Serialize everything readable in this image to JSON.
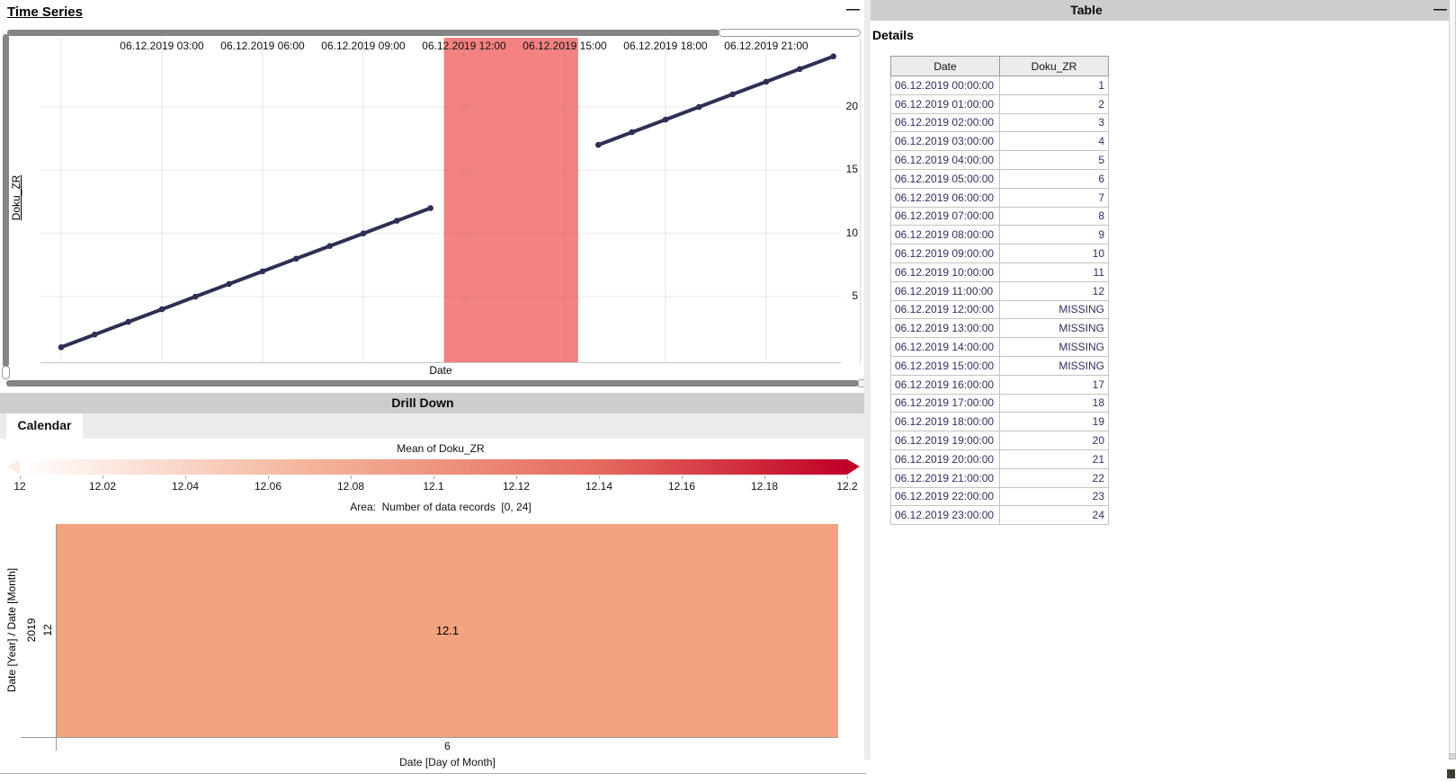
{
  "time_series": {
    "title": "Time Series",
    "x_axis_label": "Date",
    "y_axis_label": "Doku_ZR"
  },
  "chart_data": [
    {
      "type": "line",
      "title": "Time Series",
      "xlabel": "Date",
      "ylabel": "Doku_ZR",
      "x_unit": "hour of 06.12.2019",
      "hours": [
        0,
        1,
        2,
        3,
        4,
        5,
        6,
        7,
        8,
        9,
        10,
        11,
        12,
        13,
        14,
        15,
        16,
        17,
        18,
        19,
        20,
        21,
        22,
        23
      ],
      "values": [
        1,
        2,
        3,
        4,
        5,
        6,
        7,
        8,
        9,
        10,
        11,
        12,
        null,
        null,
        null,
        null,
        17,
        18,
        19,
        20,
        21,
        22,
        23,
        24
      ],
      "x_tick_labels": [
        "06.12.2019 03:00",
        "06.12.2019 06:00",
        "06.12.2019 09:00",
        "06.12.2019 12:00",
        "06.12.2019 15:00",
        "06.12.2019 18:00",
        "06.12.2019 21:00"
      ],
      "x_tick_hours": [
        3,
        6,
        9,
        12,
        15,
        18,
        21
      ],
      "y_ticks": [
        20,
        15,
        10,
        5
      ],
      "ylim": [
        0,
        25.5
      ],
      "grid": true,
      "line_color": "#2d2f55",
      "highlight_band": {
        "from_hour": 11.4,
        "to_hour": 15.4,
        "color": "#f48282"
      }
    },
    {
      "type": "heatmap",
      "panel": "Drill Down",
      "tab": "Calendar",
      "legend_title": "Mean of Doku_ZR",
      "legend_ticks": [
        "12",
        "12.02",
        "12.04",
        "12.06",
        "12.08",
        "12.1",
        "12.12",
        "12.14",
        "12.16",
        "12.18",
        "12.2"
      ],
      "legend_range": [
        12,
        12.2
      ],
      "area_label": "Area:  Number of data records  [0, 24]",
      "xlabel": "Date [Day of Month]",
      "ylabel": "Date [Year] / Date [Month]",
      "cells": [
        {
          "year": "2019",
          "month": "12",
          "day": "6",
          "value": 12.1
        }
      ],
      "cell_color": "#f2a37f"
    }
  ],
  "drill_down": {
    "title": "Drill Down",
    "tab_label": "Calendar",
    "legend_title": "Mean of Doku_ZR",
    "legend_ticks": [
      "12",
      "12.02",
      "12.04",
      "12.06",
      "12.08",
      "12.1",
      "12.12",
      "12.14",
      "12.16",
      "12.18",
      "12.2"
    ],
    "area_label": "Area:  Number of data records  [0, 24]",
    "y_axis_title": "Date [Year] / Date [Month]",
    "year_label": "2019",
    "month_label": "12",
    "cell_value": "12.1",
    "x_tick_label": "6",
    "x_axis_title": "Date [Day of Month]"
  },
  "table_panel": {
    "title": "Table",
    "subtitle": "Details",
    "columns": [
      "Date",
      "Doku_ZR"
    ],
    "rows": [
      {
        "date": "06.12.2019 00:00:00",
        "value": "1"
      },
      {
        "date": "06.12.2019 01:00:00",
        "value": "2"
      },
      {
        "date": "06.12.2019 02:00:00",
        "value": "3"
      },
      {
        "date": "06.12.2019 03:00:00",
        "value": "4"
      },
      {
        "date": "06.12.2019 04:00:00",
        "value": "5"
      },
      {
        "date": "06.12.2019 05:00:00",
        "value": "6"
      },
      {
        "date": "06.12.2019 06:00:00",
        "value": "7"
      },
      {
        "date": "06.12.2019 07:00:00",
        "value": "8"
      },
      {
        "date": "06.12.2019 08:00:00",
        "value": "9"
      },
      {
        "date": "06.12.2019 09:00:00",
        "value": "10"
      },
      {
        "date": "06.12.2019 10:00:00",
        "value": "11"
      },
      {
        "date": "06.12.2019 11:00:00",
        "value": "12"
      },
      {
        "date": "06.12.2019 12:00:00",
        "value": "MISSING"
      },
      {
        "date": "06.12.2019 13:00:00",
        "value": "MISSING"
      },
      {
        "date": "06.12.2019 14:00:00",
        "value": "MISSING"
      },
      {
        "date": "06.12.2019 15:00:00",
        "value": "MISSING"
      },
      {
        "date": "06.12.2019 16:00:00",
        "value": "17"
      },
      {
        "date": "06.12.2019 17:00:00",
        "value": "18"
      },
      {
        "date": "06.12.2019 18:00:00",
        "value": "19"
      },
      {
        "date": "06.12.2019 19:00:00",
        "value": "20"
      },
      {
        "date": "06.12.2019 20:00:00",
        "value": "21"
      },
      {
        "date": "06.12.2019 21:00:00",
        "value": "22"
      },
      {
        "date": "06.12.2019 22:00:00",
        "value": "23"
      },
      {
        "date": "06.12.2019 23:00:00",
        "value": "24"
      }
    ]
  },
  "icons": {
    "minimize": "—"
  },
  "colors": {
    "line": "#2d2f55",
    "missing_band": "#f48282",
    "calendar_cell": "#f2a37f",
    "gradient_start": "#ffffff",
    "gradient_end": "#c10027",
    "panel_header_bg": "#cdcdcd",
    "slider_gray": "#858585"
  }
}
